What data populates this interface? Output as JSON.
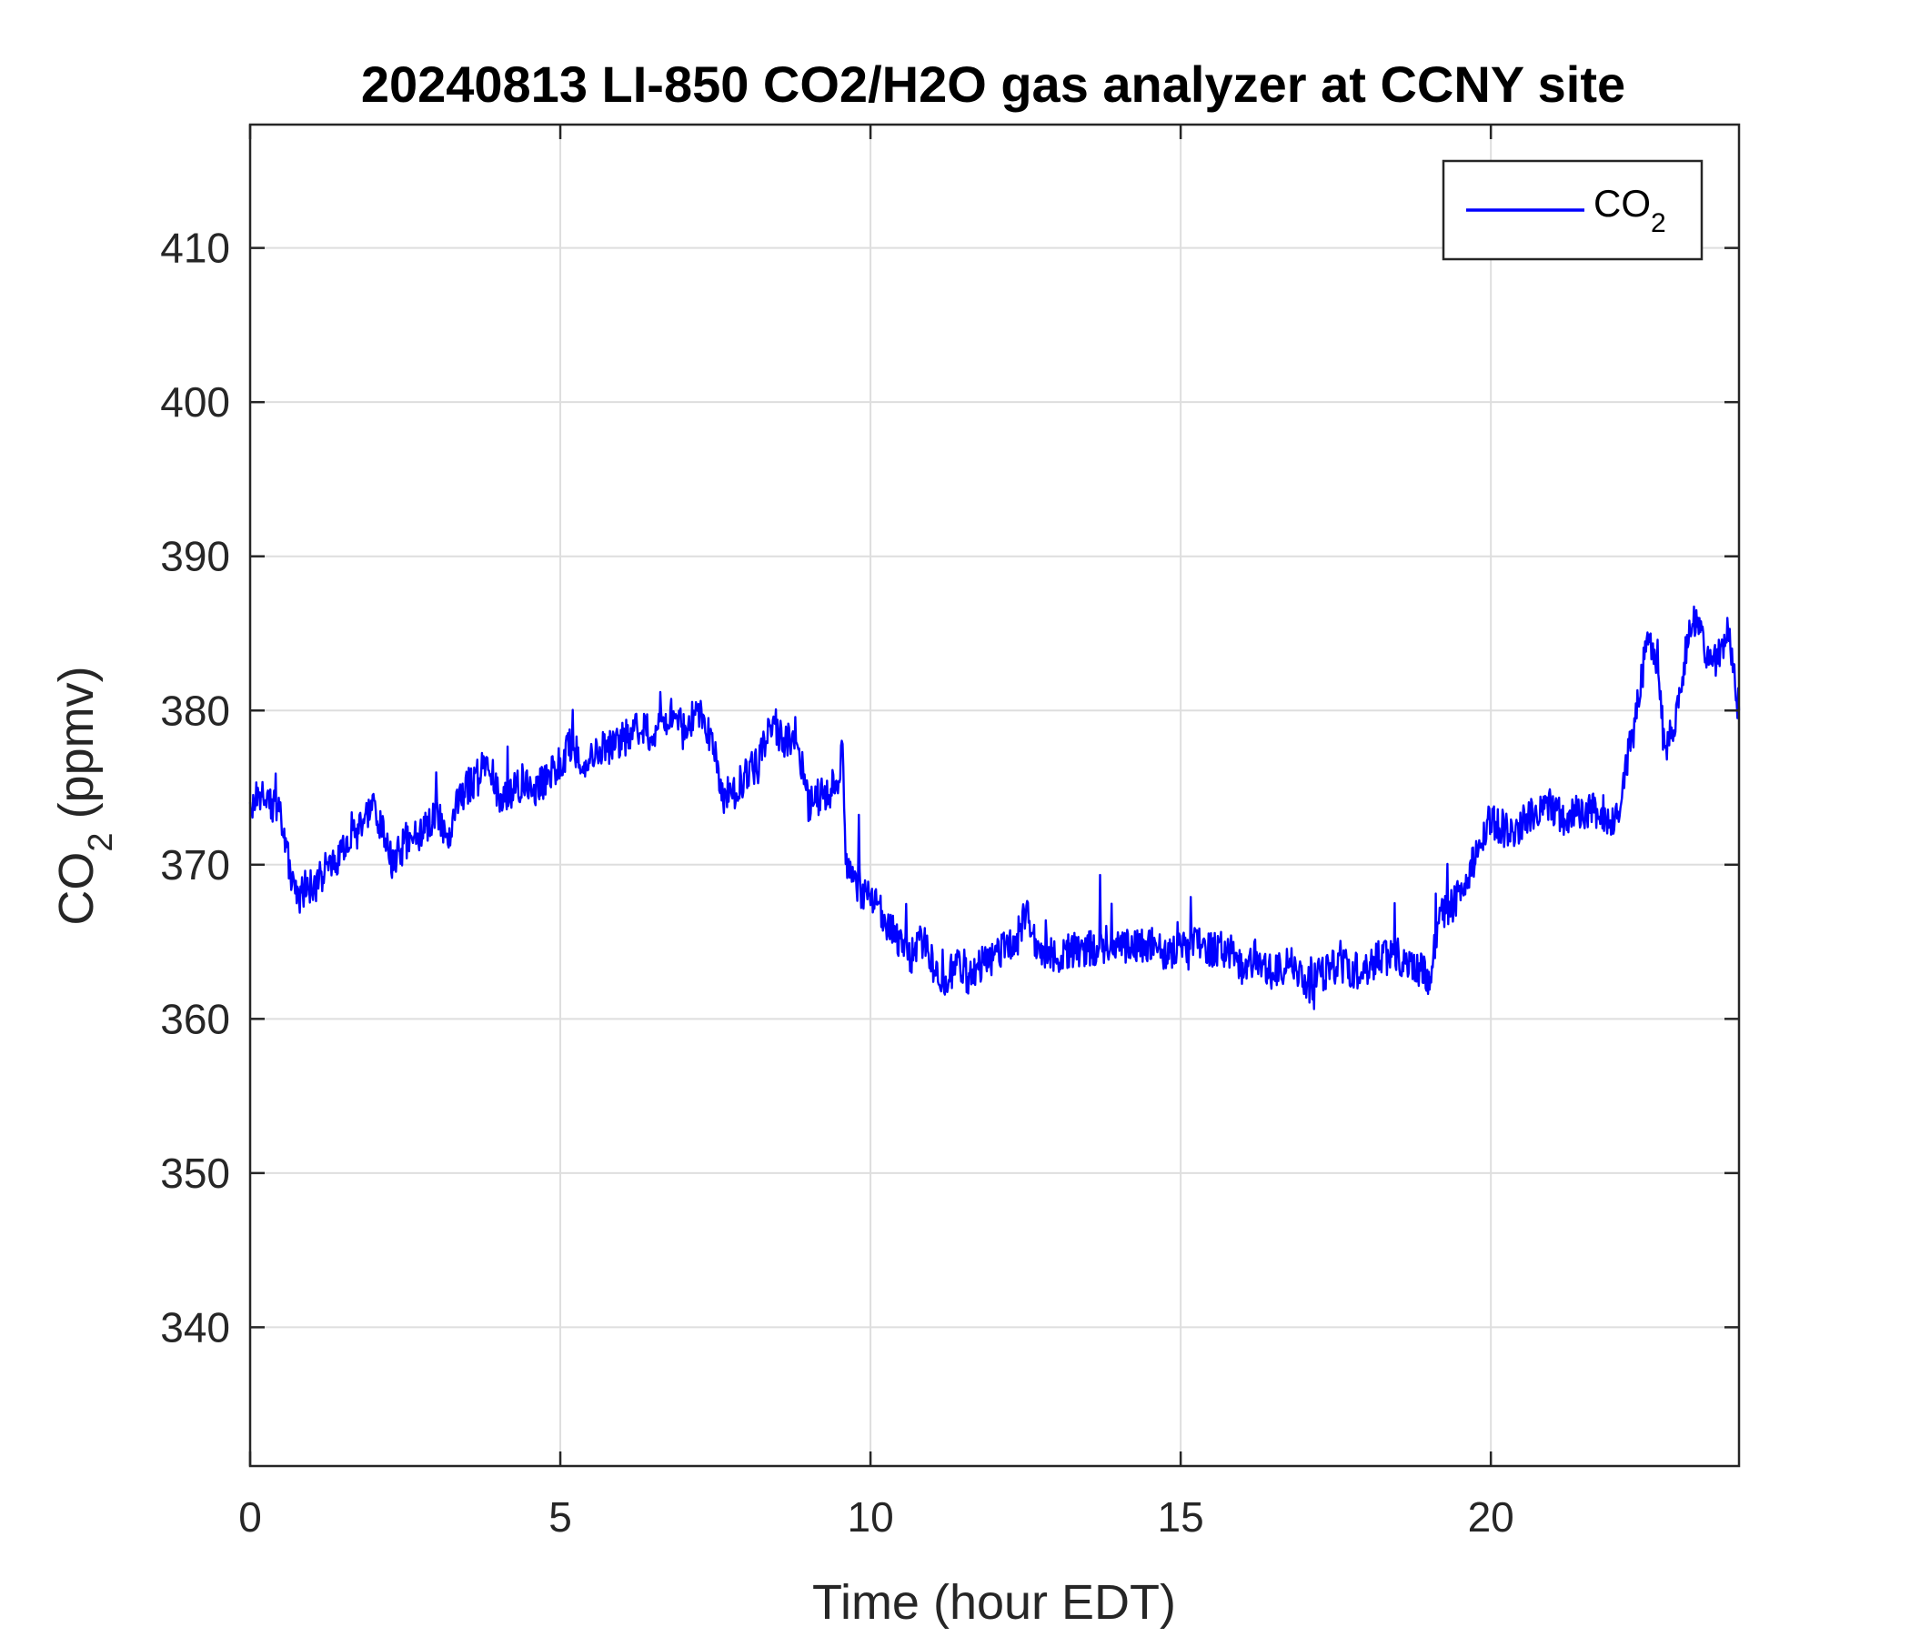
{
  "chart_data": {
    "type": "line",
    "title": "20240813 LI-850 CO2/H2O gas analyzer at CCNY site",
    "xlabel": "Time (hour EDT)",
    "ylabel": {
      "base": "CO",
      "sub": "2",
      "rest": " (ppmv)"
    },
    "xlim": [
      0,
      24
    ],
    "ylim": [
      331,
      418
    ],
    "xticks": [
      0,
      5,
      10,
      15,
      20
    ],
    "yticks": [
      340,
      350,
      360,
      370,
      380,
      390,
      400,
      410
    ],
    "grid": true,
    "legend": {
      "placement": "top-right",
      "label": {
        "base": "CO",
        "sub": "2"
      }
    },
    "series": [
      {
        "color": "#0000ff",
        "x": [
          0,
          0.25,
          0.5,
          0.65,
          0.8,
          0.9,
          1.0,
          1.2,
          1.4,
          1.6,
          1.8,
          2.0,
          2.2,
          2.3,
          2.5,
          2.7,
          3.0,
          3.2,
          3.4,
          3.6,
          3.8,
          3.9,
          4.0,
          4.2,
          4.4,
          4.6,
          4.8,
          5.0,
          5.2,
          5.4,
          5.6,
          5.8,
          6.0,
          6.2,
          6.5,
          6.8,
          7.0,
          7.2,
          7.4,
          7.5,
          7.6,
          7.8,
          8.0,
          8.2,
          8.4,
          8.6,
          8.8,
          9.0,
          9.2,
          9.4,
          9.5,
          9.55,
          9.6,
          9.7,
          9.9,
          10.1,
          10.3,
          10.5,
          10.7,
          10.8,
          11.0,
          11.2,
          11.4,
          11.6,
          11.8,
          12.0,
          12.2,
          12.4,
          12.5,
          12.7,
          13.0,
          13.3,
          13.6,
          13.9,
          14.2,
          14.5,
          14.8,
          15.0,
          15.2,
          15.5,
          15.8,
          16.0,
          16.2,
          16.5,
          16.8,
          17.0,
          17.3,
          17.6,
          17.9,
          18.2,
          18.5,
          18.8,
          19.0,
          19.2,
          19.4,
          19.6,
          19.8,
          20.0,
          20.3,
          20.6,
          20.9,
          21.2,
          21.5,
          21.8,
          22.0,
          22.2,
          22.3,
          22.5,
          22.7,
          22.8,
          23.0,
          23.2,
          23.3,
          23.5,
          23.7,
          23.8,
          24.0
        ],
        "values": [
          374,
          374.5,
          373,
          369.5,
          368,
          368.5,
          368.5,
          369.5,
          370.5,
          371.5,
          372.5,
          373.5,
          371.5,
          370,
          371.5,
          372,
          373,
          372,
          374.5,
          375.5,
          376.5,
          376,
          374.5,
          374.5,
          375.5,
          375,
          375.5,
          376.5,
          378,
          376,
          377.5,
          377.5,
          378,
          379,
          378.5,
          380,
          378.5,
          380,
          378.5,
          377,
          374.5,
          374.5,
          376,
          376.5,
          379.5,
          378,
          378.5,
          374,
          374.5,
          375,
          374.5,
          379,
          370.5,
          369.5,
          368,
          367.5,
          366,
          364.5,
          364,
          365.5,
          363.5,
          362.5,
          363.5,
          362.5,
          363.5,
          364,
          365,
          365,
          367,
          364.5,
          364,
          364.5,
          364.5,
          365,
          364.5,
          365,
          364,
          364.5,
          365,
          364.5,
          364.5,
          363,
          364,
          363,
          363.5,
          362,
          363,
          363.5,
          363,
          364,
          364,
          363.5,
          362.5,
          367,
          367.5,
          368.5,
          371.5,
          373,
          372,
          373,
          374,
          373,
          373.5,
          373.5,
          372.5,
          377,
          378.5,
          384,
          383.5,
          377,
          380,
          385.5,
          386,
          383,
          383.5,
          385.5,
          380
        ]
      }
    ]
  }
}
